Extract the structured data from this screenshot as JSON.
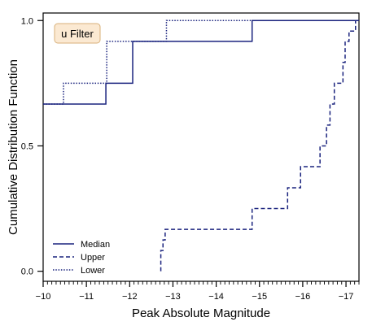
{
  "chart_data": {
    "type": "line",
    "title": "",
    "xlabel": "Peak Absolute Magnitude",
    "ylabel": "Cumulative Distribution Function",
    "xlim": [
      -10,
      -17.3
    ],
    "ylim": [
      -0.04,
      1.03
    ],
    "x_reversed": true,
    "x_ticks": [
      -10,
      -11,
      -12,
      -13,
      -14,
      -15,
      -16,
      -17
    ],
    "x_tick_labels": [
      "−10",
      "−11",
      "−12",
      "−13",
      "−14",
      "−15",
      "−16",
      "−17"
    ],
    "x_minor_tick_step": 0.1,
    "y_ticks": [
      0.0,
      0.5,
      1.0
    ],
    "y_tick_labels": [
      "0.0",
      "0.5",
      "1.0"
    ],
    "grid": false,
    "legend_position": "lower-left",
    "annotation": "u Filter",
    "line_color": "#1a237e",
    "annotation_box_fill": "#fbe9d2",
    "annotation_box_border": "#d8b07a",
    "series": [
      {
        "name": "Median",
        "style": "solid",
        "x": [
          -10.0,
          -11.45,
          -11.45,
          -12.07,
          -12.07,
          -14.83,
          -14.83,
          -17.3
        ],
        "y": [
          0.667,
          0.667,
          0.75,
          0.75,
          0.917,
          0.917,
          1.0,
          1.0
        ]
      },
      {
        "name": "Upper",
        "style": "dashed",
        "x": [
          -12.72,
          -12.72,
          -12.77,
          -12.77,
          -12.82,
          -12.82,
          -14.83,
          -14.83,
          -15.65,
          -15.65,
          -15.95,
          -15.95,
          -16.4,
          -16.4,
          -16.55,
          -16.55,
          -16.63,
          -16.63,
          -16.73,
          -16.73,
          -16.93,
          -16.93,
          -16.98,
          -16.98,
          -17.07,
          -17.07,
          -17.22,
          -17.22,
          -17.3
        ],
        "y": [
          0.0,
          0.083,
          0.083,
          0.125,
          0.125,
          0.167,
          0.167,
          0.25,
          0.25,
          0.333,
          0.333,
          0.417,
          0.417,
          0.5,
          0.5,
          0.583,
          0.583,
          0.667,
          0.667,
          0.75,
          0.75,
          0.833,
          0.833,
          0.917,
          0.917,
          0.958,
          0.958,
          1.0,
          1.0
        ]
      },
      {
        "name": "Lower",
        "style": "dotted",
        "x": [
          -10.0,
          -10.47,
          -10.47,
          -11.47,
          -11.47,
          -12.85,
          -12.85,
          -17.3
        ],
        "y": [
          0.667,
          0.667,
          0.75,
          0.75,
          0.917,
          0.917,
          1.0,
          1.0
        ]
      }
    ]
  }
}
